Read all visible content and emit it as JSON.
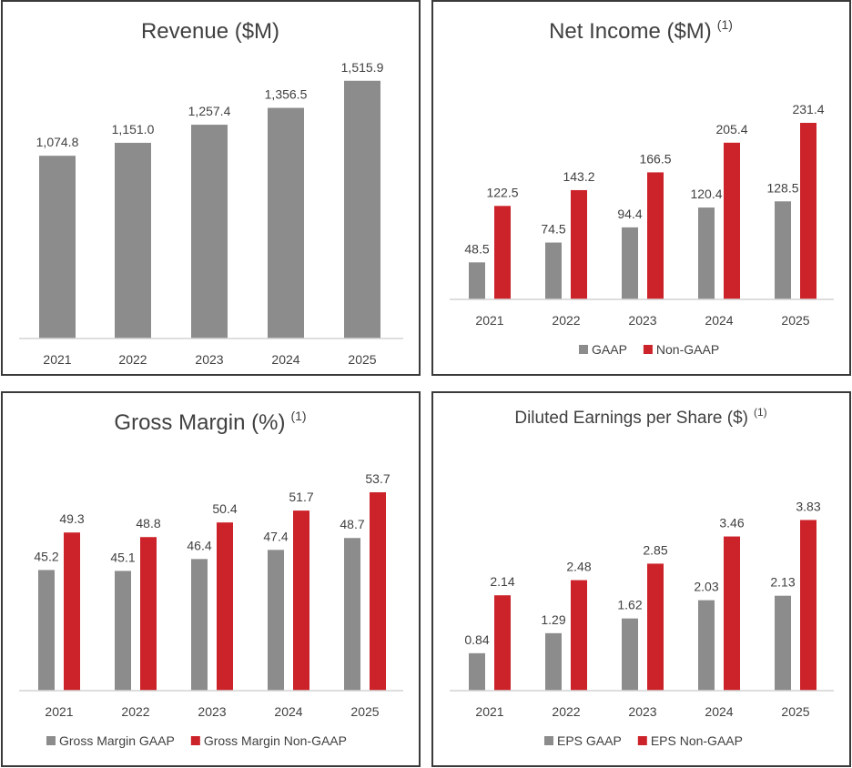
{
  "colors": {
    "gaap": "#8c8c8c",
    "non_gaap": "#cc2229",
    "text": "#404040",
    "axis": "#d4d4d4"
  },
  "chart_data": [
    {
      "id": "revenue",
      "type": "bar",
      "title": "Revenue ($M)",
      "footnote": "",
      "categories": [
        "2021",
        "2022",
        "2023",
        "2024",
        "2025"
      ],
      "series": [
        {
          "values": [
            1074.8,
            1151.0,
            1257.4,
            1356.5,
            1515.9
          ],
          "labels": [
            "1,074.8",
            "1,151.0",
            "1,257.4",
            "1,356.5",
            "1,515.9"
          ]
        }
      ],
      "ylim": [
        0,
        1520
      ],
      "legend": "none",
      "grid": false
    },
    {
      "id": "net-income",
      "type": "bar",
      "title": "Net Income ($M)",
      "footnote": "(1)",
      "categories": [
        "2021",
        "2022",
        "2023",
        "2024",
        "2025"
      ],
      "series": [
        {
          "name": "GAAP",
          "values": [
            48.5,
            74.5,
            94.4,
            120.4,
            128.5
          ],
          "labels": [
            "48.5",
            "74.5",
            "94.4",
            "120.4",
            "128.5"
          ]
        },
        {
          "name": "Non-GAAP",
          "values": [
            122.5,
            143.2,
            166.5,
            205.4,
            231.4
          ],
          "labels": [
            "122.5",
            "143.2",
            "166.5",
            "205.4",
            "231.4"
          ]
        }
      ],
      "ylim": [
        0,
        235
      ],
      "legend": "bottom",
      "grid": false
    },
    {
      "id": "gross-margin",
      "type": "bar",
      "title": "Gross Margin (%)",
      "footnote": "(1)",
      "categories": [
        "2021",
        "2022",
        "2023",
        "2024",
        "2025"
      ],
      "series": [
        {
          "name": "Gross Margin GAAP",
          "values": [
            45.2,
            45.1,
            46.4,
            47.4,
            48.7
          ],
          "labels": [
            "45.2",
            "45.1",
            "46.4",
            "47.4",
            "48.7"
          ]
        },
        {
          "name": "Gross Margin Non-GAAP",
          "values": [
            49.3,
            48.8,
            50.4,
            51.7,
            53.7
          ],
          "labels": [
            "49.3",
            "48.8",
            "50.4",
            "51.7",
            "53.7"
          ]
        }
      ],
      "ylim": [
        32,
        54
      ],
      "legend": "bottom",
      "grid": false
    },
    {
      "id": "eps",
      "type": "bar",
      "title": "Diluted Earnings per Share ($)",
      "footnote": "(1)",
      "categories": [
        "2021",
        "2022",
        "2023",
        "2024",
        "2025"
      ],
      "series": [
        {
          "name": "EPS GAAP",
          "values": [
            0.84,
            1.29,
            1.62,
            2.03,
            2.13
          ],
          "labels": [
            "0.84",
            "1.29",
            "1.62",
            "2.03",
            "2.13"
          ]
        },
        {
          "name": "EPS Non-GAAP",
          "values": [
            2.14,
            2.48,
            2.85,
            3.46,
            3.83
          ],
          "labels": [
            "2.14",
            "2.48",
            "2.85",
            "3.46",
            "3.83"
          ]
        }
      ],
      "ylim": [
        0,
        3.88
      ],
      "legend": "bottom",
      "grid": false
    }
  ]
}
